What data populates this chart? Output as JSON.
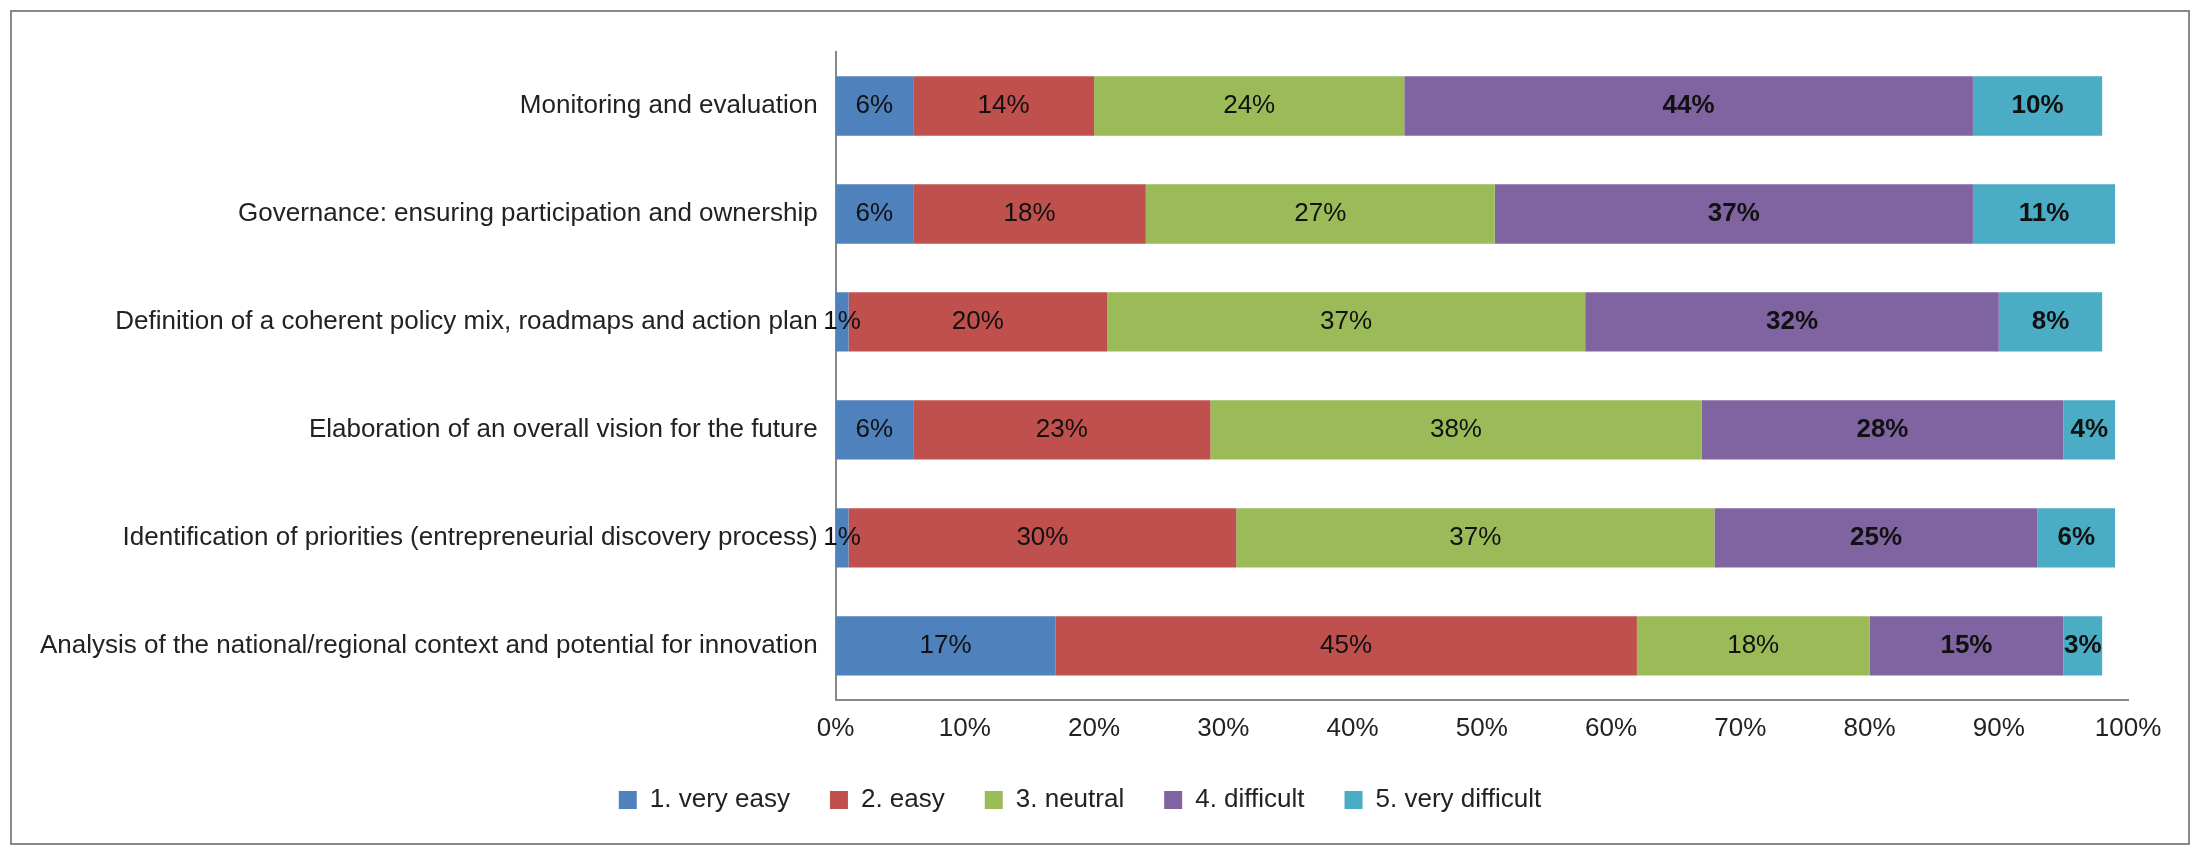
{
  "chart_data": {
    "type": "bar",
    "orientation": "horizontal",
    "stacked": true,
    "categories": [
      "Monitoring and evaluation",
      "Governance: ensuring participation and ownership",
      "Definition of a coherent policy mix, roadmaps and action plan",
      "Elaboration of an overall vision for the future",
      "Identification of priorities (entrepreneurial discovery process)",
      "Analysis of the national/regional context and potential for innovation"
    ],
    "series": [
      {
        "name": "1. very easy",
        "color": "#4f81bd",
        "values": [
          6,
          6,
          1,
          6,
          1,
          17
        ],
        "value_labels": [
          "6%",
          "6%",
          "1%",
          "6%",
          "1%",
          "17%"
        ]
      },
      {
        "name": "2. easy",
        "color": "#c0504d",
        "values": [
          14,
          18,
          20,
          23,
          30,
          45
        ],
        "value_labels": [
          "14%",
          "18%",
          "20%",
          "23%",
          "30%",
          "45%"
        ]
      },
      {
        "name": "3. neutral",
        "color": "#9bbb59",
        "values": [
          24,
          27,
          37,
          38,
          37,
          18
        ],
        "value_labels": [
          "24%",
          "27%",
          "37%",
          "38%",
          "37%",
          "18%"
        ]
      },
      {
        "name": "4. difficult",
        "color": "#8064a2",
        "values": [
          44,
          37,
          32,
          28,
          25,
          15
        ],
        "value_labels": [
          "44%",
          "37%",
          "32%",
          "28%",
          "25%",
          "15%"
        ]
      },
      {
        "name": "5. very difficult",
        "color": "#4bacc6",
        "values": [
          10,
          11,
          8,
          4,
          6,
          3
        ],
        "value_labels": [
          "10%",
          "11%",
          "8%",
          "4%",
          "6%",
          "3%"
        ]
      }
    ],
    "xlim": [
      0,
      100
    ],
    "xticks": [
      {
        "value": 0,
        "label": "0%"
      },
      {
        "value": 10,
        "label": "10%"
      },
      {
        "value": 20,
        "label": "20%"
      },
      {
        "value": 30,
        "label": "30%"
      },
      {
        "value": 40,
        "label": "40%"
      },
      {
        "value": 50,
        "label": "50%"
      },
      {
        "value": 60,
        "label": "60%"
      },
      {
        "value": 70,
        "label": "70%"
      },
      {
        "value": 80,
        "label": "80%"
      },
      {
        "value": 90,
        "label": "90%"
      },
      {
        "value": 100,
        "label": "100%"
      }
    ],
    "grid": false,
    "legend": "bottom"
  }
}
